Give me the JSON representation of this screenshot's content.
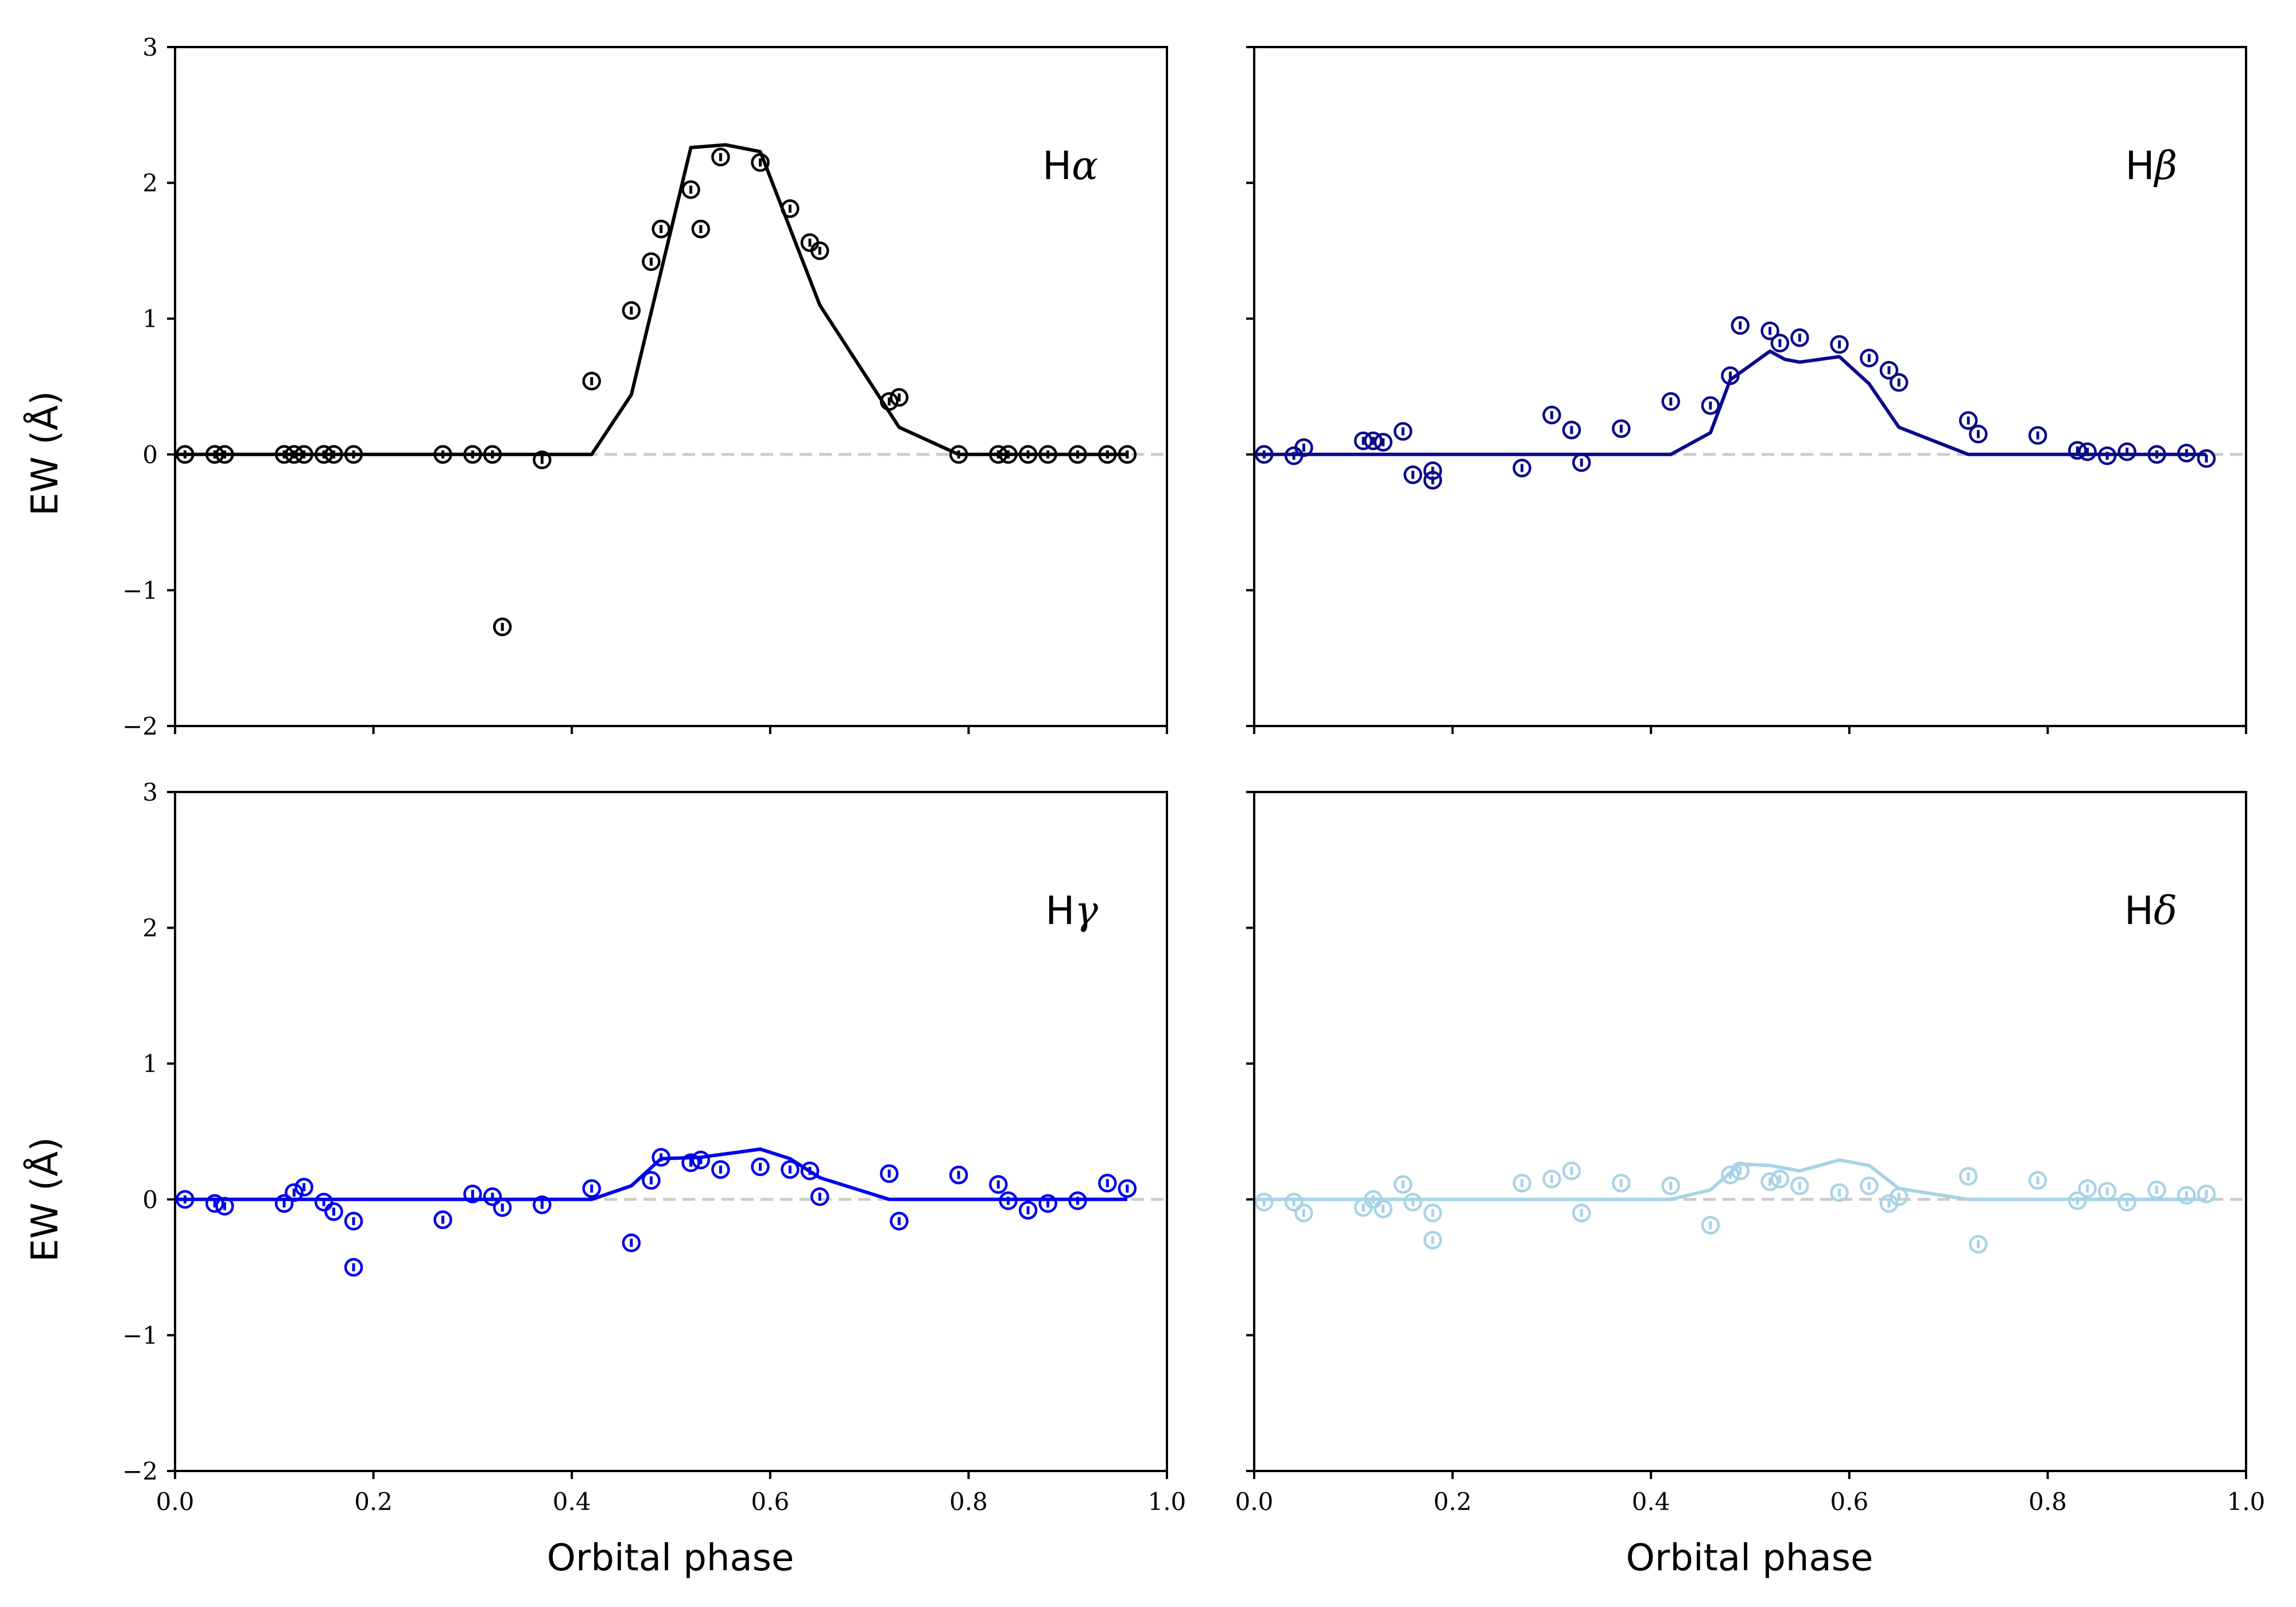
{
  "figure": {
    "xlabel": "Orbital phase",
    "ylabel": "EW (Å)"
  },
  "chart_data": [
    {
      "type": "scatter",
      "title": "Hα",
      "label_prefix": "H",
      "label_greek": "α",
      "color": "#000000",
      "xlabel": "Orbital phase",
      "ylabel": "EW (Å)",
      "xlim": [
        0.0,
        1.0
      ],
      "ylim": [
        -2,
        3
      ],
      "xticks": [
        "0.0",
        "0.2",
        "0.4",
        "0.6",
        "0.8",
        "1.0"
      ],
      "yticks": [
        "−2",
        "−1",
        "0",
        "1",
        "2",
        "3"
      ],
      "points": {
        "x": [
          0.01,
          0.04,
          0.05,
          0.11,
          0.12,
          0.13,
          0.15,
          0.16,
          0.18,
          0.27,
          0.3,
          0.32,
          0.33,
          0.37,
          0.42,
          0.46,
          0.48,
          0.49,
          0.52,
          0.53,
          0.55,
          0.59,
          0.62,
          0.64,
          0.65,
          0.72,
          0.73,
          0.79,
          0.83,
          0.84,
          0.86,
          0.88,
          0.91,
          0.94,
          0.96
        ],
        "y": [
          0.0,
          0.0,
          0.0,
          0.0,
          0.0,
          0.0,
          0.0,
          0.0,
          0.0,
          0.0,
          0.0,
          0.0,
          -1.27,
          -0.04,
          0.54,
          1.06,
          1.42,
          1.66,
          1.95,
          1.66,
          2.19,
          2.15,
          1.81,
          1.56,
          1.5,
          0.39,
          0.42,
          0.0,
          0.0,
          0.0,
          0.0,
          0.0,
          0.0,
          0.0,
          0.0
        ]
      },
      "model": {
        "x": [
          0.0,
          0.42,
          0.46,
          0.52,
          0.555,
          0.59,
          0.65,
          0.73,
          0.79,
          0.96
        ],
        "y": [
          0.0,
          0.0,
          0.44,
          2.26,
          2.28,
          2.23,
          1.1,
          0.2,
          0.0,
          0.0
        ]
      }
    },
    {
      "type": "scatter",
      "title": "Hβ",
      "label_prefix": "H",
      "label_greek": "β",
      "color": "#0a0a8c",
      "xlabel": "Orbital phase",
      "ylabel": "EW (Å)",
      "xlim": [
        0.0,
        1.0
      ],
      "ylim": [
        -2,
        3
      ],
      "xticks": [
        "0.0",
        "0.2",
        "0.4",
        "0.6",
        "0.8",
        "1.0"
      ],
      "yticks": [
        "−2",
        "−1",
        "0",
        "1",
        "2",
        "3"
      ],
      "points": {
        "x": [
          0.01,
          0.04,
          0.05,
          0.11,
          0.12,
          0.13,
          0.15,
          0.16,
          0.18,
          0.18,
          0.27,
          0.3,
          0.32,
          0.33,
          0.37,
          0.42,
          0.46,
          0.48,
          0.49,
          0.52,
          0.53,
          0.55,
          0.59,
          0.62,
          0.64,
          0.65,
          0.72,
          0.73,
          0.79,
          0.83,
          0.84,
          0.86,
          0.88,
          0.91,
          0.94,
          0.96
        ],
        "y": [
          0.0,
          -0.01,
          0.05,
          0.1,
          0.1,
          0.09,
          0.17,
          -0.15,
          -0.12,
          -0.19,
          -0.1,
          0.29,
          0.18,
          -0.06,
          0.19,
          0.39,
          0.36,
          0.58,
          0.95,
          0.91,
          0.82,
          0.86,
          0.81,
          0.71,
          0.62,
          0.53,
          0.25,
          0.15,
          0.14,
          0.03,
          0.02,
          -0.01,
          0.02,
          0.0,
          0.01,
          -0.03
        ]
      },
      "model": {
        "x": [
          0.0,
          0.42,
          0.46,
          0.48,
          0.52,
          0.535,
          0.55,
          0.59,
          0.62,
          0.65,
          0.72,
          0.96
        ],
        "y": [
          0.0,
          0.0,
          0.16,
          0.55,
          0.76,
          0.7,
          0.68,
          0.72,
          0.52,
          0.2,
          0.0,
          0.0
        ]
      }
    },
    {
      "type": "scatter",
      "title": "Hγ",
      "label_prefix": "H",
      "label_greek": "γ",
      "color": "#0000ee",
      "xlabel": "Orbital phase",
      "ylabel": "EW (Å)",
      "xlim": [
        0.0,
        1.0
      ],
      "ylim": [
        -2,
        3
      ],
      "xticks": [
        "0.0",
        "0.2",
        "0.4",
        "0.6",
        "0.8",
        "1.0"
      ],
      "yticks": [
        "−2",
        "−1",
        "0",
        "1",
        "2",
        "3"
      ],
      "points": {
        "x": [
          0.01,
          0.04,
          0.05,
          0.11,
          0.12,
          0.13,
          0.15,
          0.16,
          0.18,
          0.18,
          0.27,
          0.3,
          0.32,
          0.33,
          0.37,
          0.42,
          0.46,
          0.48,
          0.49,
          0.52,
          0.53,
          0.55,
          0.59,
          0.62,
          0.64,
          0.65,
          0.72,
          0.73,
          0.79,
          0.83,
          0.84,
          0.86,
          0.88,
          0.91,
          0.94,
          0.96
        ],
        "y": [
          0.0,
          -0.03,
          -0.05,
          -0.03,
          0.05,
          0.09,
          -0.02,
          -0.09,
          -0.16,
          -0.5,
          -0.15,
          0.04,
          0.02,
          -0.06,
          -0.04,
          0.08,
          -0.32,
          0.14,
          0.31,
          0.27,
          0.29,
          0.22,
          0.24,
          0.22,
          0.21,
          0.02,
          0.19,
          -0.16,
          0.18,
          0.11,
          -0.01,
          -0.08,
          -0.03,
          -0.01,
          0.12,
          0.08
        ]
      },
      "model": {
        "x": [
          0.0,
          0.42,
          0.46,
          0.49,
          0.53,
          0.59,
          0.62,
          0.65,
          0.72,
          0.96
        ],
        "y": [
          0.0,
          0.0,
          0.1,
          0.3,
          0.31,
          0.37,
          0.3,
          0.16,
          0.0,
          0.0
        ]
      }
    },
    {
      "type": "scatter",
      "title": "Hδ",
      "label_prefix": "H",
      "label_greek": "δ",
      "color": "#a8d3e6",
      "xlabel": "Orbital phase",
      "ylabel": "EW (Å)",
      "xlim": [
        0.0,
        1.0
      ],
      "ylim": [
        -2,
        3
      ],
      "xticks": [
        "0.0",
        "0.2",
        "0.4",
        "0.6",
        "0.8",
        "1.0"
      ],
      "yticks": [
        "−2",
        "−1",
        "0",
        "1",
        "2",
        "3"
      ],
      "points": {
        "x": [
          0.01,
          0.04,
          0.05,
          0.11,
          0.12,
          0.13,
          0.15,
          0.16,
          0.18,
          0.18,
          0.27,
          0.3,
          0.32,
          0.33,
          0.37,
          0.42,
          0.46,
          0.48,
          0.49,
          0.52,
          0.53,
          0.55,
          0.59,
          0.62,
          0.64,
          0.65,
          0.72,
          0.73,
          0.79,
          0.83,
          0.84,
          0.86,
          0.88,
          0.91,
          0.94,
          0.96
        ],
        "y": [
          -0.02,
          -0.02,
          -0.1,
          -0.06,
          0.0,
          -0.07,
          0.11,
          -0.02,
          -0.1,
          -0.3,
          0.12,
          0.15,
          0.21,
          -0.1,
          0.12,
          0.1,
          -0.19,
          0.18,
          0.21,
          0.13,
          0.15,
          0.1,
          0.05,
          0.1,
          -0.03,
          0.02,
          0.17,
          -0.33,
          0.14,
          -0.01,
          0.08,
          0.06,
          -0.02,
          0.07,
          0.03,
          0.04
        ]
      },
      "model": {
        "x": [
          0.0,
          0.42,
          0.46,
          0.49,
          0.52,
          0.55,
          0.59,
          0.62,
          0.65,
          0.72,
          0.96
        ],
        "y": [
          0.0,
          0.0,
          0.07,
          0.26,
          0.25,
          0.21,
          0.29,
          0.25,
          0.08,
          0.0,
          0.0
        ]
      }
    }
  ]
}
